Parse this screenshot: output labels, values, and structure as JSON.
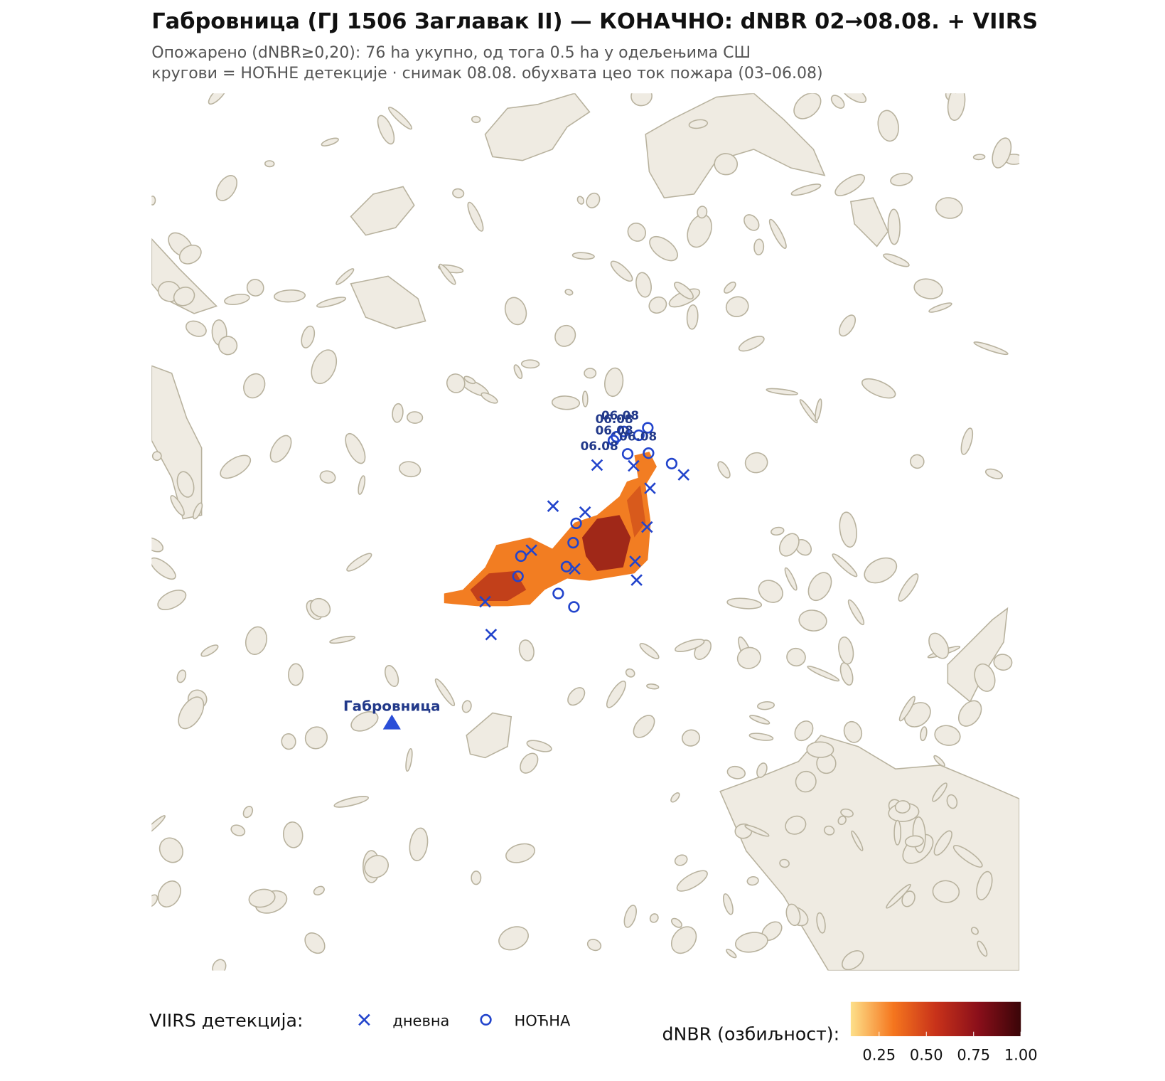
{
  "chart_data": {
    "type": "map",
    "title": "Габровница (ГЈ 1506 Заглавак II) — КОНАЧНО: dNBR 02→08.08. + VIIRS",
    "subtitle": [
      "Опожарено (dNBR≥0,20): 76 ha укупно, од тога 0.5 ha у одељењима СШ",
      "кругови = НОЋНЕ детекције · снимак 08.08. обухвата цео ток пожара (03–06.08)"
    ],
    "legend_title": "VIIRS детекција:",
    "series": [
      {
        "name": "дневна",
        "color": "#2244cc",
        "marker": "x",
        "x": [
          597,
          646,
          713,
          668,
          538,
          581,
          664,
          509,
          648,
          567,
          650,
          447,
          455
        ],
        "y": [
          498,
          499,
          511,
          529,
          553,
          561,
          581,
          612,
          627,
          637,
          652,
          681,
          725
        ]
      },
      {
        "name": "НОЋНА",
        "color": "#2244cc",
        "marker": "o",
        "x": [
          665,
          633,
          619,
          638,
          666,
          697,
          569,
          565,
          495,
          556,
          491,
          545,
          566,
          623,
          653
        ],
        "y": [
          448,
          453,
          465,
          483,
          482,
          496,
          576,
          602,
          620,
          634,
          647,
          670,
          688,
          460,
          458
        ]
      }
    ],
    "annotations": [
      {
        "text": "06.08",
        "x": 628,
        "y": 437
      },
      {
        "text": "06.08",
        "x": 620,
        "y": 442
      },
      {
        "text": "06.08",
        "x": 620,
        "y": 457
      },
      {
        "text": "06.08",
        "x": 652,
        "y": 465
      },
      {
        "text": "06.08",
        "x": 600,
        "y": 478
      }
    ],
    "place": {
      "name": "Габровница",
      "x": 322,
      "y": 843
    },
    "colorbar": {
      "label": "dNBR (озбиљност):",
      "clim": [
        0.1,
        1.0
      ],
      "ticks": [
        {
          "value": 0.25,
          "label": "0.25"
        },
        {
          "value": 0.5,
          "label": "0.50"
        },
        {
          "value": 0.75,
          "label": "0.75"
        },
        {
          "value": 1.0,
          "label": "1.00"
        }
      ],
      "colors": [
        "#fde08a",
        "#f5761e",
        "#c8321a",
        "#8a0f1a",
        "#3a0508"
      ]
    }
  }
}
